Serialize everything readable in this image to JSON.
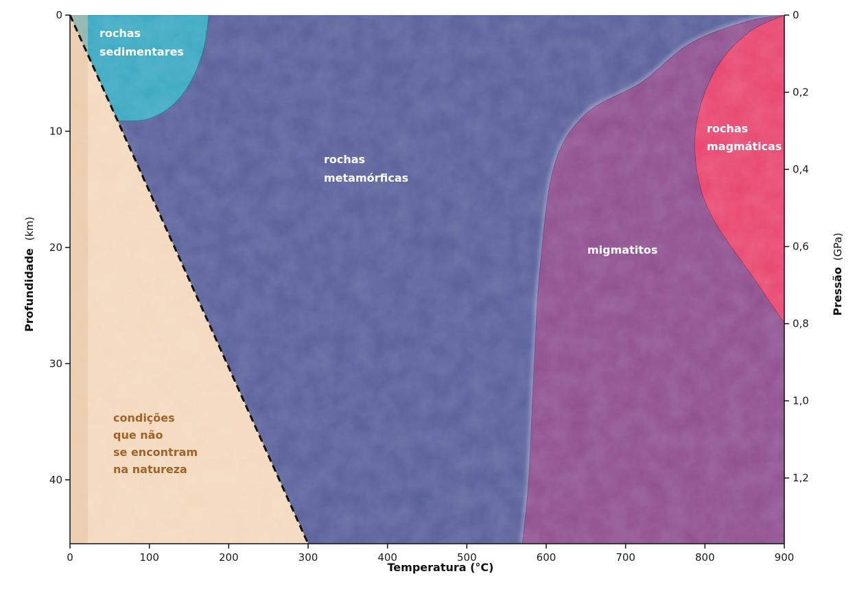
{
  "chart_data": {
    "type": "area",
    "xlabel": "Temperatura (°C)",
    "ylabel_left": "Profundidade",
    "ylabel_left_unit": "(km)",
    "ylabel_right": "Pressão",
    "ylabel_right_unit": "(GPa)",
    "xlim": [
      0,
      900
    ],
    "ylim_depth_km": [
      0,
      45.5
    ],
    "x_ticks": [
      "0",
      "100",
      "200",
      "300",
      "400",
      "500",
      "600",
      "700",
      "800",
      "900"
    ],
    "x_tick_values": [
      0,
      100,
      200,
      300,
      400,
      500,
      600,
      700,
      800,
      900
    ],
    "y_left_ticks": [
      "0",
      "10",
      "20",
      "30",
      "40"
    ],
    "y_left_tick_values": [
      0,
      10,
      20,
      30,
      40
    ],
    "y_right_ticks": [
      "0",
      "0,2",
      "0,4",
      "0,6",
      "0,8",
      "1,0",
      "1,2"
    ],
    "y_right_tick_values_gpa": [
      0,
      0.2,
      0.4,
      0.6,
      0.8,
      1.0,
      1.2
    ],
    "gpa_to_km": 33.2,
    "boundary_line": {
      "style": "dashed",
      "points": [
        [
          0,
          0
        ],
        [
          300,
          45.5
        ]
      ]
    },
    "regions": [
      {
        "name": "rochas sedimentares",
        "lines": [
          "rochas",
          "sedimentares"
        ],
        "color": "#3aa9c2",
        "boundary": [
          [
            0,
            0
          ],
          [
            175,
            0
          ],
          [
            168,
            3
          ],
          [
            150,
            6
          ],
          [
            125,
            8
          ],
          [
            95,
            9
          ],
          [
            60,
            9.1
          ]
        ]
      },
      {
        "name": "rochas metamórficas",
        "lines": [
          "rochas",
          "metamórficas"
        ],
        "color": "#58609a",
        "boundary": [
          [
            175,
            0
          ],
          [
            900,
            0
          ],
          [
            900,
            45.5
          ],
          [
            300,
            45.5
          ],
          [
            60,
            9.1
          ]
        ]
      },
      {
        "name": "migmatitos",
        "lines": [
          "migmatitos"
        ],
        "color": "#8e4f8e",
        "boundary": [
          [
            900,
            0
          ],
          [
            850,
            0.6
          ],
          [
            780,
            2.5
          ],
          [
            720,
            5.8
          ],
          [
            650,
            8.5
          ],
          [
            610,
            13
          ],
          [
            592,
            22
          ],
          [
            585,
            30
          ],
          [
            578,
            40
          ],
          [
            570,
            45.5
          ],
          [
            900,
            45.5
          ]
        ]
      },
      {
        "name": "rochas magmáticas",
        "lines": [
          "rochas",
          "magmáticas"
        ],
        "color": "#e8466f",
        "boundary": [
          [
            900,
            0
          ],
          [
            855,
            1.5
          ],
          [
            815,
            4.5
          ],
          [
            790,
            9
          ],
          [
            790,
            13.5
          ],
          [
            810,
            17.5
          ],
          [
            860,
            22.5
          ],
          [
            900,
            26.5
          ]
        ]
      },
      {
        "name": "condições que não se encontram na natureza",
        "lines": [
          "condições",
          "que não",
          "se encontram",
          "na natureza"
        ],
        "color": "#f4d9bd",
        "boundary": [
          [
            0,
            0
          ],
          [
            300,
            45.5
          ],
          [
            0,
            45.5
          ]
        ]
      }
    ]
  }
}
